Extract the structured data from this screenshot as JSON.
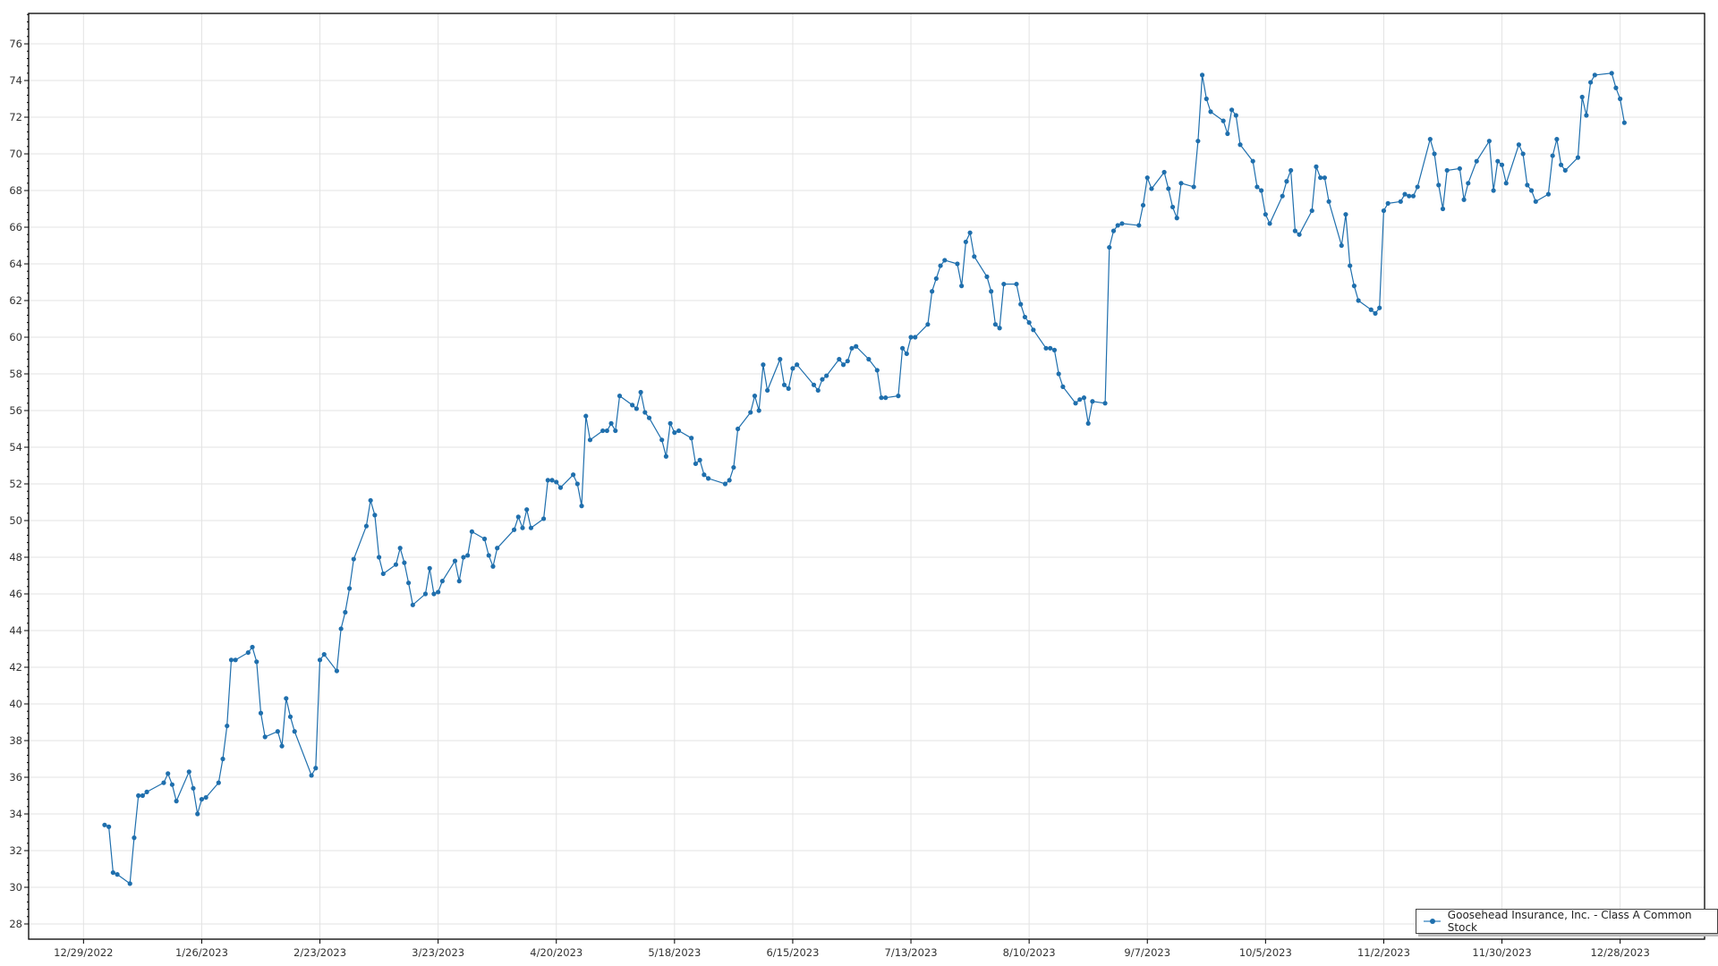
{
  "chart_data": {
    "type": "line",
    "title": "",
    "xlabel": "",
    "ylabel": "",
    "xlim": [
      "2022-12-16",
      "2024-01-17"
    ],
    "ylim": [
      27.17,
      77.66
    ],
    "grid": true,
    "legend_placement": "bottom-right",
    "colors": {
      "line": "#1f6fad",
      "grid": "#e3e3e3",
      "axis": "#000000"
    },
    "y_ticks": [
      28,
      30,
      32,
      34,
      36,
      38,
      40,
      42,
      44,
      46,
      48,
      50,
      52,
      54,
      56,
      58,
      60,
      62,
      64,
      66,
      68,
      70,
      72,
      74,
      76
    ],
    "x_ticks": [
      {
        "date": "2022-12-29",
        "label": "12/29/2022"
      },
      {
        "date": "2023-01-26",
        "label": "1/26/2023"
      },
      {
        "date": "2023-02-23",
        "label": "2/23/2023"
      },
      {
        "date": "2023-03-23",
        "label": "3/23/2023"
      },
      {
        "date": "2023-04-20",
        "label": "4/20/2023"
      },
      {
        "date": "2023-05-18",
        "label": "5/18/2023"
      },
      {
        "date": "2023-06-15",
        "label": "6/15/2023"
      },
      {
        "date": "2023-07-13",
        "label": "7/13/2023"
      },
      {
        "date": "2023-08-10",
        "label": "8/10/2023"
      },
      {
        "date": "2023-09-07",
        "label": "9/7/2023"
      },
      {
        "date": "2023-10-05",
        "label": "10/5/2023"
      },
      {
        "date": "2023-11-02",
        "label": "11/2/2023"
      },
      {
        "date": "2023-11-30",
        "label": "11/30/2023"
      },
      {
        "date": "2023-12-28",
        "label": "12/28/2023"
      }
    ],
    "series": [
      {
        "name": "Goosehead Insurance, Inc. - Class A Common Stock",
        "points": [
          [
            "2023-01-03",
            33.4
          ],
          [
            "2023-01-04",
            33.3
          ],
          [
            "2023-01-05",
            30.8
          ],
          [
            "2023-01-06",
            30.7
          ],
          [
            "2023-01-09",
            30.2
          ],
          [
            "2023-01-10",
            32.7
          ],
          [
            "2023-01-11",
            35.0
          ],
          [
            "2023-01-12",
            35.0
          ],
          [
            "2023-01-13",
            35.2
          ],
          [
            "2023-01-17",
            35.7
          ],
          [
            "2023-01-18",
            36.2
          ],
          [
            "2023-01-19",
            35.6
          ],
          [
            "2023-01-20",
            34.7
          ],
          [
            "2023-01-23",
            36.3
          ],
          [
            "2023-01-24",
            35.4
          ],
          [
            "2023-01-25",
            34.0
          ],
          [
            "2023-01-26",
            34.8
          ],
          [
            "2023-01-27",
            34.9
          ],
          [
            "2023-01-30",
            35.7
          ],
          [
            "2023-01-31",
            37.0
          ],
          [
            "2023-02-01",
            38.8
          ],
          [
            "2023-02-02",
            42.4
          ],
          [
            "2023-02-03",
            42.4
          ],
          [
            "2023-02-06",
            42.8
          ],
          [
            "2023-02-07",
            43.1
          ],
          [
            "2023-02-08",
            42.3
          ],
          [
            "2023-02-09",
            39.5
          ],
          [
            "2023-02-10",
            38.2
          ],
          [
            "2023-02-13",
            38.5
          ],
          [
            "2023-02-14",
            37.7
          ],
          [
            "2023-02-15",
            40.3
          ],
          [
            "2023-02-16",
            39.3
          ],
          [
            "2023-02-17",
            38.5
          ],
          [
            "2023-02-21",
            36.1
          ],
          [
            "2023-02-22",
            36.5
          ],
          [
            "2023-02-23",
            42.4
          ],
          [
            "2023-02-24",
            42.7
          ],
          [
            "2023-02-27",
            41.8
          ],
          [
            "2023-02-28",
            44.1
          ],
          [
            "2023-03-01",
            45.0
          ],
          [
            "2023-03-02",
            46.3
          ],
          [
            "2023-03-03",
            47.9
          ],
          [
            "2023-03-06",
            49.7
          ],
          [
            "2023-03-07",
            51.1
          ],
          [
            "2023-03-08",
            50.3
          ],
          [
            "2023-03-09",
            48.0
          ],
          [
            "2023-03-10",
            47.1
          ],
          [
            "2023-03-13",
            47.6
          ],
          [
            "2023-03-14",
            48.5
          ],
          [
            "2023-03-15",
            47.7
          ],
          [
            "2023-03-16",
            46.6
          ],
          [
            "2023-03-17",
            45.4
          ],
          [
            "2023-03-20",
            46.0
          ],
          [
            "2023-03-21",
            47.4
          ],
          [
            "2023-03-22",
            46.0
          ],
          [
            "2023-03-23",
            46.1
          ],
          [
            "2023-03-24",
            46.7
          ],
          [
            "2023-03-27",
            47.8
          ],
          [
            "2023-03-28",
            46.7
          ],
          [
            "2023-03-29",
            48.0
          ],
          [
            "2023-03-30",
            48.1
          ],
          [
            "2023-03-31",
            49.4
          ],
          [
            "2023-04-03",
            49.0
          ],
          [
            "2023-04-04",
            48.1
          ],
          [
            "2023-04-05",
            47.5
          ],
          [
            "2023-04-06",
            48.5
          ],
          [
            "2023-04-10",
            49.5
          ],
          [
            "2023-04-11",
            50.2
          ],
          [
            "2023-04-12",
            49.6
          ],
          [
            "2023-04-13",
            50.6
          ],
          [
            "2023-04-14",
            49.6
          ],
          [
            "2023-04-17",
            50.1
          ],
          [
            "2023-04-18",
            52.2
          ],
          [
            "2023-04-19",
            52.2
          ],
          [
            "2023-04-20",
            52.1
          ],
          [
            "2023-04-21",
            51.8
          ],
          [
            "2023-04-24",
            52.5
          ],
          [
            "2023-04-25",
            52.0
          ],
          [
            "2023-04-26",
            50.8
          ],
          [
            "2023-04-27",
            55.7
          ],
          [
            "2023-04-28",
            54.4
          ],
          [
            "2023-05-01",
            54.9
          ],
          [
            "2023-05-02",
            54.9
          ],
          [
            "2023-05-03",
            55.3
          ],
          [
            "2023-05-04",
            54.9
          ],
          [
            "2023-05-05",
            56.8
          ],
          [
            "2023-05-08",
            56.3
          ],
          [
            "2023-05-09",
            56.1
          ],
          [
            "2023-05-10",
            57.0
          ],
          [
            "2023-05-11",
            55.9
          ],
          [
            "2023-05-12",
            55.6
          ],
          [
            "2023-05-15",
            54.4
          ],
          [
            "2023-05-16",
            53.5
          ],
          [
            "2023-05-17",
            55.3
          ],
          [
            "2023-05-18",
            54.8
          ],
          [
            "2023-05-19",
            54.9
          ],
          [
            "2023-05-22",
            54.5
          ],
          [
            "2023-05-23",
            53.1
          ],
          [
            "2023-05-24",
            53.3
          ],
          [
            "2023-05-25",
            52.5
          ],
          [
            "2023-05-26",
            52.3
          ],
          [
            "2023-05-30",
            52.0
          ],
          [
            "2023-05-31",
            52.2
          ],
          [
            "2023-06-01",
            52.9
          ],
          [
            "2023-06-02",
            55.0
          ],
          [
            "2023-06-05",
            55.9
          ],
          [
            "2023-06-06",
            56.8
          ],
          [
            "2023-06-07",
            56.0
          ],
          [
            "2023-06-08",
            58.5
          ],
          [
            "2023-06-09",
            57.1
          ],
          [
            "2023-06-12",
            58.8
          ],
          [
            "2023-06-13",
            57.4
          ],
          [
            "2023-06-14",
            57.2
          ],
          [
            "2023-06-15",
            58.3
          ],
          [
            "2023-06-16",
            58.5
          ],
          [
            "2023-06-20",
            57.4
          ],
          [
            "2023-06-21",
            57.1
          ],
          [
            "2023-06-22",
            57.7
          ],
          [
            "2023-06-23",
            57.9
          ],
          [
            "2023-06-26",
            58.8
          ],
          [
            "2023-06-27",
            58.5
          ],
          [
            "2023-06-28",
            58.7
          ],
          [
            "2023-06-29",
            59.4
          ],
          [
            "2023-06-30",
            59.5
          ],
          [
            "2023-07-03",
            58.8
          ],
          [
            "2023-07-05",
            58.2
          ],
          [
            "2023-07-06",
            56.7
          ],
          [
            "2023-07-07",
            56.7
          ],
          [
            "2023-07-10",
            56.8
          ],
          [
            "2023-07-11",
            59.4
          ],
          [
            "2023-07-12",
            59.1
          ],
          [
            "2023-07-13",
            60.0
          ],
          [
            "2023-07-14",
            60.0
          ],
          [
            "2023-07-17",
            60.7
          ],
          [
            "2023-07-18",
            62.5
          ],
          [
            "2023-07-19",
            63.2
          ],
          [
            "2023-07-20",
            63.9
          ],
          [
            "2023-07-21",
            64.2
          ],
          [
            "2023-07-24",
            64.0
          ],
          [
            "2023-07-25",
            62.8
          ],
          [
            "2023-07-26",
            65.2
          ],
          [
            "2023-07-27",
            65.7
          ],
          [
            "2023-07-28",
            64.4
          ],
          [
            "2023-07-31",
            63.3
          ],
          [
            "2023-08-01",
            62.5
          ],
          [
            "2023-08-02",
            60.7
          ],
          [
            "2023-08-03",
            60.5
          ],
          [
            "2023-08-04",
            62.9
          ],
          [
            "2023-08-07",
            62.9
          ],
          [
            "2023-08-08",
            61.8
          ],
          [
            "2023-08-09",
            61.1
          ],
          [
            "2023-08-10",
            60.8
          ],
          [
            "2023-08-11",
            60.4
          ],
          [
            "2023-08-14",
            59.4
          ],
          [
            "2023-08-15",
            59.4
          ],
          [
            "2023-08-16",
            59.3
          ],
          [
            "2023-08-17",
            58.0
          ],
          [
            "2023-08-18",
            57.3
          ],
          [
            "2023-08-21",
            56.4
          ],
          [
            "2023-08-22",
            56.6
          ],
          [
            "2023-08-23",
            56.7
          ],
          [
            "2023-08-24",
            55.3
          ],
          [
            "2023-08-25",
            56.5
          ],
          [
            "2023-08-28",
            56.4
          ],
          [
            "2023-08-29",
            64.9
          ],
          [
            "2023-08-30",
            65.8
          ],
          [
            "2023-08-31",
            66.1
          ],
          [
            "2023-09-01",
            66.2
          ],
          [
            "2023-09-05",
            66.1
          ],
          [
            "2023-09-06",
            67.2
          ],
          [
            "2023-09-07",
            68.7
          ],
          [
            "2023-09-08",
            68.1
          ],
          [
            "2023-09-11",
            69.0
          ],
          [
            "2023-09-12",
            68.1
          ],
          [
            "2023-09-13",
            67.1
          ],
          [
            "2023-09-14",
            66.5
          ],
          [
            "2023-09-15",
            68.4
          ],
          [
            "2023-09-18",
            68.2
          ],
          [
            "2023-09-19",
            70.7
          ],
          [
            "2023-09-20",
            74.3
          ],
          [
            "2023-09-21",
            73.0
          ],
          [
            "2023-09-22",
            72.3
          ],
          [
            "2023-09-25",
            71.8
          ],
          [
            "2023-09-26",
            71.1
          ],
          [
            "2023-09-27",
            72.4
          ],
          [
            "2023-09-28",
            72.1
          ],
          [
            "2023-09-29",
            70.5
          ],
          [
            "2023-10-02",
            69.6
          ],
          [
            "2023-10-03",
            68.2
          ],
          [
            "2023-10-04",
            68.0
          ],
          [
            "2023-10-05",
            66.7
          ],
          [
            "2023-10-06",
            66.2
          ],
          [
            "2023-10-09",
            67.7
          ],
          [
            "2023-10-10",
            68.5
          ],
          [
            "2023-10-11",
            69.1
          ],
          [
            "2023-10-12",
            65.8
          ],
          [
            "2023-10-13",
            65.6
          ],
          [
            "2023-10-16",
            66.9
          ],
          [
            "2023-10-17",
            69.3
          ],
          [
            "2023-10-18",
            68.7
          ],
          [
            "2023-10-19",
            68.7
          ],
          [
            "2023-10-20",
            67.4
          ],
          [
            "2023-10-23",
            65.0
          ],
          [
            "2023-10-24",
            66.7
          ],
          [
            "2023-10-25",
            63.9
          ],
          [
            "2023-10-26",
            62.8
          ],
          [
            "2023-10-27",
            62.0
          ],
          [
            "2023-10-30",
            61.5
          ],
          [
            "2023-10-31",
            61.3
          ],
          [
            "2023-11-01",
            61.6
          ],
          [
            "2023-11-02",
            66.9
          ],
          [
            "2023-11-03",
            67.3
          ],
          [
            "2023-11-06",
            67.4
          ],
          [
            "2023-11-07",
            67.8
          ],
          [
            "2023-11-08",
            67.7
          ],
          [
            "2023-11-09",
            67.7
          ],
          [
            "2023-11-10",
            68.2
          ],
          [
            "2023-11-13",
            70.8
          ],
          [
            "2023-11-14",
            70.0
          ],
          [
            "2023-11-15",
            68.3
          ],
          [
            "2023-11-16",
            67.0
          ],
          [
            "2023-11-17",
            69.1
          ],
          [
            "2023-11-20",
            69.2
          ],
          [
            "2023-11-21",
            67.5
          ],
          [
            "2023-11-22",
            68.4
          ],
          [
            "2023-11-24",
            69.6
          ],
          [
            "2023-11-27",
            70.7
          ],
          [
            "2023-11-28",
            68.0
          ],
          [
            "2023-11-29",
            69.6
          ],
          [
            "2023-11-30",
            69.4
          ],
          [
            "2023-12-01",
            68.4
          ],
          [
            "2023-12-04",
            70.5
          ],
          [
            "2023-12-05",
            70.0
          ],
          [
            "2023-12-06",
            68.3
          ],
          [
            "2023-12-07",
            68.0
          ],
          [
            "2023-12-08",
            67.4
          ],
          [
            "2023-12-11",
            67.8
          ],
          [
            "2023-12-12",
            69.9
          ],
          [
            "2023-12-13",
            70.8
          ],
          [
            "2023-12-14",
            69.4
          ],
          [
            "2023-12-15",
            69.1
          ],
          [
            "2023-12-18",
            69.8
          ],
          [
            "2023-12-19",
            73.1
          ],
          [
            "2023-12-20",
            72.1
          ],
          [
            "2023-12-21",
            73.9
          ],
          [
            "2023-12-22",
            74.3
          ],
          [
            "2023-12-26",
            74.4
          ],
          [
            "2023-12-27",
            73.6
          ],
          [
            "2023-12-28",
            73.0
          ],
          [
            "2023-12-29",
            71.7
          ]
        ]
      }
    ]
  }
}
